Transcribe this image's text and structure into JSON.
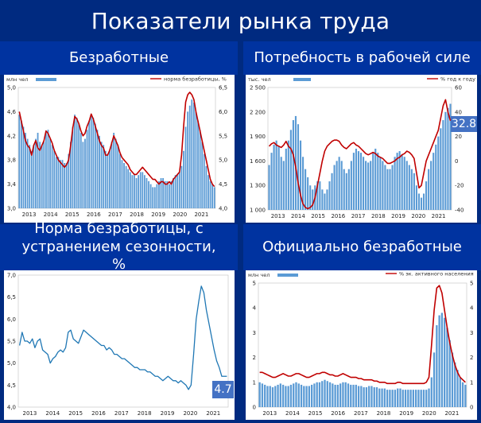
{
  "header": {
    "title": "Показатели рынка труда"
  },
  "chart_data": [
    {
      "id": "unemployed",
      "type": "bar",
      "title": "Безработные",
      "left_unit": "млн чел",
      "legend_bar": "",
      "legend_line": "норма безработицы, %",
      "left_ylim": [
        3.0,
        5.0
      ],
      "right_ylim": [
        4.0,
        6.5
      ],
      "left_ticks": [
        "3,0",
        "3,4",
        "3,8",
        "4,2",
        "4,6",
        "5,0"
      ],
      "left_tick_values": [
        3.0,
        3.4,
        3.8,
        4.2,
        4.6,
        5.0
      ],
      "right_ticks": [
        "4,0",
        "4,5",
        "5,0",
        "5,5",
        "6,0",
        "6,5"
      ],
      "right_tick_values": [
        4.0,
        4.5,
        5.0,
        5.5,
        6.0,
        6.5
      ],
      "x_labels": [
        "2013",
        "2014",
        "2015",
        "2016",
        "2017",
        "2018",
        "2019",
        "2020",
        "2021"
      ],
      "bar_color": "#5b9bd5",
      "line_color": "#c00000",
      "bars": [
        4.55,
        4.45,
        4.35,
        4.25,
        4.15,
        4.05,
        3.95,
        4.05,
        4.15,
        4.25,
        4.1,
        4.05,
        4.1,
        4.25,
        4.3,
        4.15,
        4.05,
        3.95,
        3.85,
        3.85,
        3.8,
        3.8,
        3.75,
        3.75,
        3.9,
        4.1,
        4.35,
        4.55,
        4.5,
        4.4,
        4.25,
        4.1,
        4.15,
        4.3,
        4.45,
        4.55,
        4.5,
        4.4,
        4.3,
        4.2,
        4.1,
        4.05,
        3.95,
        3.9,
        3.95,
        4.1,
        4.25,
        4.15,
        4.05,
        3.9,
        3.8,
        3.75,
        3.7,
        3.65,
        3.6,
        3.55,
        3.55,
        3.5,
        3.55,
        3.6,
        3.6,
        3.55,
        3.5,
        3.45,
        3.4,
        3.35,
        3.35,
        3.4,
        3.45,
        3.5,
        3.5,
        3.45,
        3.45,
        3.4,
        3.45,
        3.5,
        3.55,
        3.55,
        3.6,
        3.7,
        3.95,
        4.35,
        4.6,
        4.7,
        4.8,
        4.75,
        4.6,
        4.45,
        4.3,
        4.1,
        3.9,
        3.7,
        3.55,
        3.45,
        3.4,
        3.35
      ],
      "line": [
        6.0,
        5.8,
        5.6,
        5.4,
        5.3,
        5.25,
        5.1,
        5.3,
        5.4,
        5.25,
        5.2,
        5.3,
        5.4,
        5.6,
        5.55,
        5.45,
        5.35,
        5.2,
        5.1,
        5.0,
        4.95,
        4.9,
        4.85,
        4.9,
        5.0,
        5.3,
        5.65,
        5.9,
        5.85,
        5.75,
        5.6,
        5.5,
        5.55,
        5.7,
        5.8,
        5.95,
        5.85,
        5.7,
        5.55,
        5.4,
        5.3,
        5.25,
        5.1,
        5.1,
        5.2,
        5.35,
        5.5,
        5.4,
        5.3,
        5.15,
        5.05,
        5.0,
        4.95,
        4.9,
        4.8,
        4.75,
        4.7,
        4.7,
        4.75,
        4.8,
        4.85,
        4.8,
        4.75,
        4.7,
        4.65,
        4.6,
        4.6,
        4.55,
        4.5,
        4.55,
        4.55,
        4.5,
        4.5,
        4.55,
        4.5,
        4.6,
        4.65,
        4.7,
        4.75,
        5.1,
        5.7,
        6.2,
        6.35,
        6.4,
        6.35,
        6.25,
        6.0,
        5.8,
        5.6,
        5.4,
        5.2,
        5.0,
        4.8,
        4.6,
        4.5,
        4.45
      ]
    },
    {
      "id": "labor-demand",
      "type": "bar",
      "title": "Потребность в рабочей силе",
      "left_unit": "тыс. чел",
      "legend_bar": "",
      "legend_line": "% год к году",
      "left_ylim": [
        1000,
        2500
      ],
      "right_ylim": [
        -40,
        60
      ],
      "left_ticks": [
        "1 000",
        "1 300",
        "1 600",
        "1 900",
        "2 200",
        "2 500"
      ],
      "left_tick_values": [
        1000,
        1300,
        1600,
        1900,
        2200,
        2500
      ],
      "right_ticks": [
        "-40",
        "-20",
        "0",
        "20",
        "40",
        "60"
      ],
      "right_tick_values": [
        -40,
        -20,
        0,
        20,
        40,
        60
      ],
      "x_labels": [
        "2013",
        "2014",
        "2015",
        "2016",
        "2017",
        "2018",
        "2019",
        "2020",
        "2021"
      ],
      "bar_color": "#5b9bd5",
      "line_color": "#c00000",
      "badge": "32.8",
      "bars": [
        1550,
        1700,
        1800,
        1850,
        1780,
        1650,
        1600,
        1750,
        1850,
        1980,
        2100,
        2150,
        2050,
        1850,
        1650,
        1500,
        1400,
        1300,
        1250,
        1300,
        1350,
        1350,
        1250,
        1200,
        1250,
        1350,
        1450,
        1550,
        1600,
        1650,
        1600,
        1500,
        1450,
        1500,
        1600,
        1700,
        1750,
        1720,
        1700,
        1650,
        1600,
        1580,
        1600,
        1700,
        1750,
        1700,
        1650,
        1600,
        1550,
        1500,
        1500,
        1550,
        1650,
        1700,
        1720,
        1680,
        1650,
        1600,
        1550,
        1500,
        1450,
        1300,
        1200,
        1150,
        1200,
        1350,
        1500,
        1600,
        1700,
        1800,
        1900,
        2000,
        2100,
        2200,
        2250,
        2300
      ],
      "line": [
        12,
        14,
        15,
        13,
        12,
        11,
        13,
        16,
        12,
        10,
        5,
        -5,
        -18,
        -28,
        -35,
        -38,
        -39,
        -38,
        -36,
        -30,
        -20,
        -10,
        0,
        8,
        12,
        14,
        16,
        17,
        17,
        16,
        13,
        11,
        10,
        12,
        14,
        15,
        13,
        12,
        10,
        8,
        6,
        5,
        6,
        7,
        6,
        4,
        3,
        2,
        0,
        -2,
        -2,
        -1,
        0,
        2,
        3,
        5,
        6,
        8,
        7,
        5,
        2,
        -10,
        -22,
        -20,
        -10,
        0,
        5,
        10,
        15,
        20,
        25,
        35,
        45,
        50,
        40,
        32.8
      ]
    },
    {
      "id": "unemployment-rate-sa",
      "type": "line",
      "title": "Норма безработицы, с устранением сезонности, %",
      "ylim": [
        4.0,
        7.0
      ],
      "y_ticks": [
        "4,0",
        "4,5",
        "5,0",
        "5,5",
        "6,0",
        "6,5",
        "7,0"
      ],
      "y_tick_values": [
        4.0,
        4.5,
        5.0,
        5.5,
        6.0,
        6.5,
        7.0
      ],
      "x_labels": [
        "2013",
        "2014",
        "2015",
        "2016",
        "2017",
        "2018",
        "2019",
        "2020",
        "2021"
      ],
      "line_color": "#1f77b4",
      "badge": "4.7",
      "line": [
        5.4,
        5.7,
        5.5,
        5.5,
        5.45,
        5.55,
        5.35,
        5.5,
        5.55,
        5.3,
        5.25,
        5.2,
        5.0,
        5.1,
        5.15,
        5.25,
        5.3,
        5.25,
        5.35,
        5.7,
        5.75,
        5.55,
        5.5,
        5.45,
        5.6,
        5.75,
        5.7,
        5.65,
        5.6,
        5.55,
        5.5,
        5.45,
        5.4,
        5.4,
        5.3,
        5.35,
        5.3,
        5.2,
        5.2,
        5.15,
        5.1,
        5.1,
        5.05,
        5.0,
        4.95,
        4.9,
        4.9,
        4.85,
        4.85,
        4.85,
        4.8,
        4.8,
        4.75,
        4.7,
        4.7,
        4.65,
        4.6,
        4.65,
        4.7,
        4.65,
        4.6,
        4.6,
        4.55,
        4.6,
        4.55,
        4.5,
        4.4,
        4.5,
        5.2,
        6.0,
        6.4,
        6.75,
        6.6,
        6.2,
        5.9,
        5.6,
        5.3,
        5.05,
        4.9,
        4.7,
        4.7,
        4.7
      ]
    },
    {
      "id": "official-unemployed",
      "type": "bar",
      "title": "Официально безработные",
      "left_unit": "млн чел",
      "legend_bar": "",
      "legend_line": "% эк. активного населения",
      "left_ylim": [
        0,
        5
      ],
      "right_ylim": [
        0,
        5
      ],
      "left_ticks": [
        "0",
        "1",
        "2",
        "3",
        "4",
        "5"
      ],
      "left_tick_values": [
        0,
        1,
        2,
        3,
        4,
        5
      ],
      "right_ticks": [
        "0",
        "1",
        "2",
        "3",
        "4",
        "5"
      ],
      "right_tick_values": [
        0,
        1,
        2,
        3,
        4,
        5
      ],
      "x_labels": [
        "2013",
        "2014",
        "2015",
        "2016",
        "2017",
        "2018",
        "2019",
        "2020",
        "2021"
      ],
      "bar_color": "#5b9bd5",
      "line_color": "#c00000",
      "bars": [
        1.0,
        0.95,
        0.9,
        0.85,
        0.85,
        0.8,
        0.85,
        0.9,
        0.95,
        0.9,
        0.85,
        0.85,
        0.9,
        0.95,
        1.0,
        0.95,
        0.9,
        0.85,
        0.85,
        0.85,
        0.9,
        0.95,
        1.0,
        1.0,
        1.05,
        1.1,
        1.05,
        1.0,
        0.95,
        0.9,
        0.9,
        0.95,
        1.0,
        1.0,
        0.95,
        0.9,
        0.9,
        0.9,
        0.85,
        0.85,
        0.8,
        0.8,
        0.85,
        0.85,
        0.8,
        0.8,
        0.75,
        0.75,
        0.75,
        0.7,
        0.7,
        0.7,
        0.7,
        0.75,
        0.75,
        0.7,
        0.7,
        0.7,
        0.7,
        0.7,
        0.7,
        0.7,
        0.7,
        0.7,
        0.7,
        0.75,
        1.2,
        2.2,
        3.3,
        3.7,
        3.8,
        3.6,
        3.2,
        2.7,
        2.2,
        1.8,
        1.5,
        1.2,
        1.0,
        0.9
      ],
      "line": [
        1.4,
        1.4,
        1.35,
        1.3,
        1.25,
        1.2,
        1.2,
        1.25,
        1.3,
        1.35,
        1.3,
        1.25,
        1.25,
        1.3,
        1.35,
        1.35,
        1.3,
        1.25,
        1.2,
        1.2,
        1.25,
        1.3,
        1.35,
        1.35,
        1.4,
        1.4,
        1.35,
        1.3,
        1.3,
        1.25,
        1.25,
        1.3,
        1.35,
        1.3,
        1.25,
        1.2,
        1.2,
        1.2,
        1.15,
        1.15,
        1.1,
        1.1,
        1.1,
        1.1,
        1.05,
        1.05,
        1.0,
        1.0,
        1.0,
        0.95,
        0.95,
        0.95,
        0.95,
        1.0,
        1.0,
        0.95,
        0.95,
        0.95,
        0.95,
        0.95,
        0.95,
        0.95,
        0.95,
        0.95,
        1.0,
        1.2,
        2.5,
        3.9,
        4.8,
        4.9,
        4.6,
        3.9,
        3.2,
        2.6,
        2.1,
        1.7,
        1.4,
        1.2,
        1.1,
        1.0
      ]
    }
  ]
}
